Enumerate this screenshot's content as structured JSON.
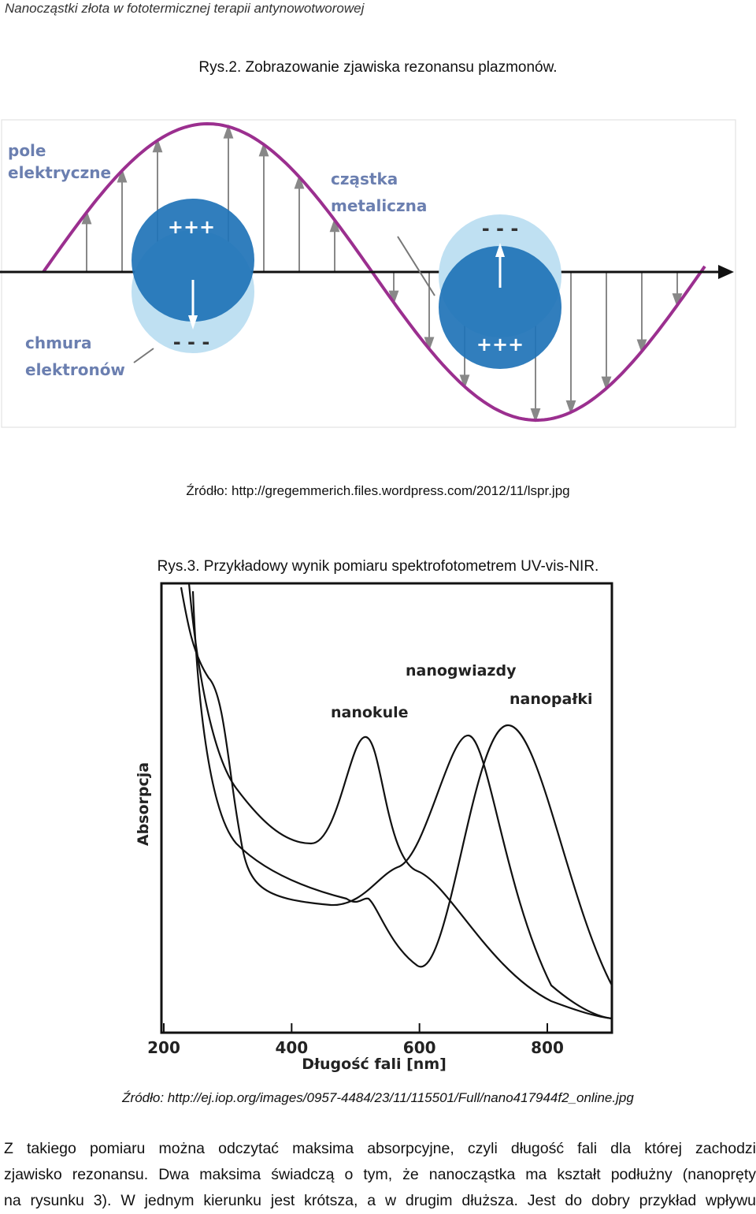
{
  "header": {
    "title": "Nanocząstki złota w fototermicznej terapii antynowotworowej"
  },
  "figure1": {
    "caption": "Rys.2. Zobrazowanie zjawiska rezonansu plazmonów.",
    "field_label": [
      "pole",
      "elektryczne"
    ],
    "particle_label": [
      "cząstka",
      "metaliczna"
    ],
    "cloud_label": [
      "chmura",
      "elektronów"
    ],
    "plus": "+++",
    "minus": "- - -",
    "source": "Źródło: http://gregemmerich.files.wordpress.com/2012/11/lspr.jpg"
  },
  "figure2": {
    "caption": "Rys.3. Przykładowy wynik pomiaru spektrofotometrem UV-vis-NIR.",
    "y_label": "Absorpcja",
    "x_label": "Długość fali [nm]",
    "xticks": [
      200,
      400,
      600,
      800
    ],
    "curve_labels": [
      "nanokule",
      "nanogwiazdy",
      "nanopałki"
    ],
    "source": "Źródło: http://ej.iop.org/images/0957-4484/23/11/115501/Full/nano417944f2_online.jpg"
  },
  "body": {
    "lines": [
      "Z takiego pomiaru można odczytać maksima absorpcyjne, czyli długość fali dla której zachodzi",
      "zjawisko rezonansu. Dwa maksima świadczą o tym, że nanocząstka ma kształt podłużny (nanopręty",
      "na rysunku 3). W jednym kierunku jest krótsza, a w drugim dłuższa. Jest do dobry przykład wpływu"
    ]
  }
}
